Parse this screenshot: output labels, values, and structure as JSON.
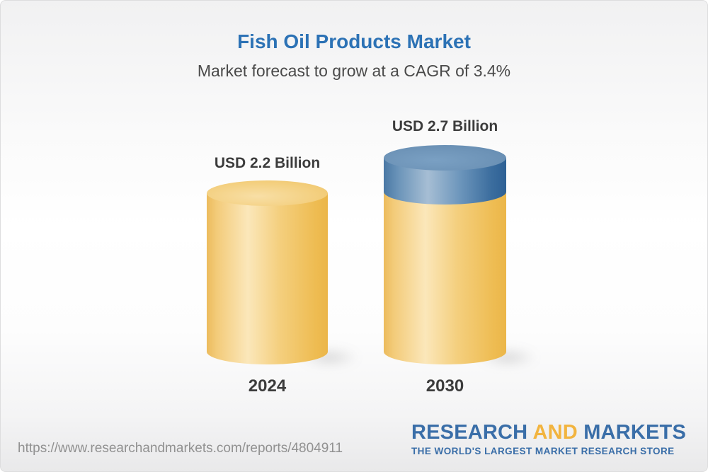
{
  "header": {
    "title": "Fish Oil Products Market",
    "subtitle": "Market forecast to grow at a CAGR of 3.4%"
  },
  "chart_data": {
    "type": "bar",
    "bar_style": "3d-cylinder",
    "categories": [
      "2024",
      "2030"
    ],
    "values": [
      2.2,
      2.7
    ],
    "unit": "USD Billion",
    "value_labels": [
      "USD 2.2 Billion",
      "USD 2.7 Billion"
    ],
    "cagr_percent": 3.4,
    "title": "Fish Oil Products Market",
    "subtitle": "Market forecast to grow at a CAGR of 3.4%",
    "legend": "none",
    "grid": "off",
    "colors": {
      "bar_base": "#f5cb76",
      "growth_cap": "#4e7ca9",
      "title_text": "#2c72b5",
      "label_text": "#3c3c3c"
    }
  },
  "footer": {
    "url": "https://www.researchandmarkets.com/reports/4804911",
    "logo": {
      "research": "RESEARCH",
      "and": "AND",
      "markets": "MARKETS",
      "tagline": "THE WORLD'S LARGEST MARKET RESEARCH STORE",
      "blue": "#3a6ea8",
      "gold": "#f2b43f"
    }
  }
}
